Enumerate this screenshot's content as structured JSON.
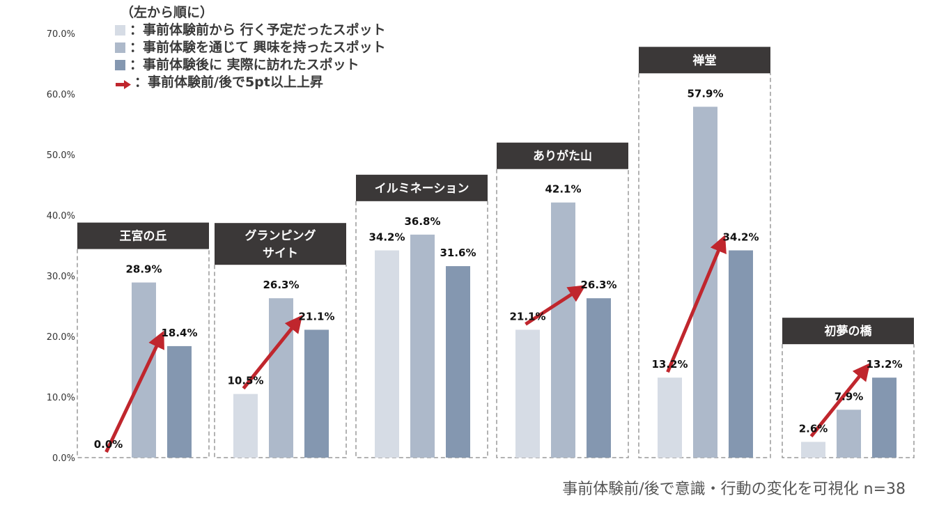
{
  "legend": {
    "heading": "（左から順に）",
    "items": [
      {
        "label": "：事前体験前から 行く予定だったスポット",
        "color": "#d6dce5"
      },
      {
        "label": "：事前体験を通じて 興味を持ったスポット",
        "color": "#adb9ca"
      },
      {
        "label": "：事前体験後に 実際に訪れたスポット",
        "color": "#8497b0"
      }
    ],
    "arrow_label": "：事前体験前/後で5pt以上上昇",
    "arrow_color": "#c0262d"
  },
  "footer": "事前体験前/後で意識・行動の変化を可視化 n=38",
  "chart_data": {
    "type": "bar",
    "y_ticks": [
      "0.0%",
      "10.0%",
      "20.0%",
      "30.0%",
      "40.0%",
      "50.0%",
      "60.0%",
      "70.0%"
    ],
    "ylim": [
      0,
      70
    ],
    "series": [
      {
        "name": "事前体験前から 行く予定だったスポット",
        "color": "#d6dce5"
      },
      {
        "name": "事前体験を通じて 興味を持ったスポット",
        "color": "#adb9ca"
      },
      {
        "name": "事前体験後に 実際に訪れたスポット",
        "color": "#8497b0"
      }
    ],
    "groups": [
      {
        "name": "王宮の丘",
        "title_lines": [
          "王宮の丘"
        ],
        "values": [
          0.0,
          28.9,
          18.4
        ],
        "labels": [
          "0.0%",
          "28.9%",
          "18.4%"
        ],
        "arrow": true
      },
      {
        "name": "グランピングサイト",
        "title_lines": [
          "グランピング",
          "サイト"
        ],
        "values": [
          10.5,
          26.3,
          21.1
        ],
        "labels": [
          "10.5%",
          "26.3%",
          "21.1%"
        ],
        "arrow": true
      },
      {
        "name": "イルミネーション",
        "title_lines": [
          "イルミネーション"
        ],
        "values": [
          34.2,
          36.8,
          31.6
        ],
        "labels": [
          "34.2%",
          "36.8%",
          "31.6%"
        ],
        "arrow": false
      },
      {
        "name": "ありがた山",
        "title_lines": [
          "ありがた山"
        ],
        "values": [
          21.1,
          42.1,
          26.3
        ],
        "labels": [
          "21.1%",
          "42.1%",
          "26.3%"
        ],
        "arrow": true
      },
      {
        "name": "禅堂",
        "title_lines": [
          "禅堂"
        ],
        "values": [
          13.2,
          57.9,
          34.2
        ],
        "labels": [
          "13.2%",
          "57.9%",
          "34.2%"
        ],
        "arrow": true
      },
      {
        "name": "初夢の橋",
        "title_lines": [
          "初夢の橋"
        ],
        "values": [
          2.6,
          7.9,
          13.2
        ],
        "labels": [
          "2.6%",
          "7.9%",
          "13.2%"
        ],
        "arrow": true
      }
    ]
  }
}
